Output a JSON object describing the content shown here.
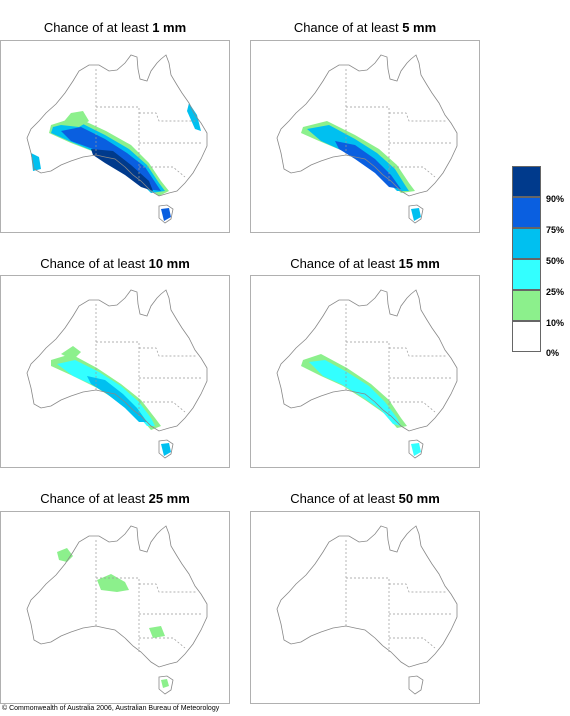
{
  "panels": [
    {
      "prefix": "Chance of at least ",
      "amount": "1 mm"
    },
    {
      "prefix": "Chance of at least ",
      "amount": "5 mm"
    },
    {
      "prefix": "Chance of at least ",
      "amount": "10 mm"
    },
    {
      "prefix": "Chance of at least ",
      "amount": "15 mm"
    },
    {
      "prefix": "Chance of at least ",
      "amount": "25 mm"
    },
    {
      "prefix": "Chance of at least ",
      "amount": "50 mm"
    }
  ],
  "legend": {
    "classes": [
      {
        "label": "90%",
        "color": "#003a8c"
      },
      {
        "label": "75%",
        "color": "#0a5fe0"
      },
      {
        "label": "50%",
        "color": "#00c0f0"
      },
      {
        "label": "25%",
        "color": "#33ffff"
      },
      {
        "label": "10%",
        "color": "#8cf08c"
      },
      {
        "label": "0%",
        "color": "#ffffff"
      }
    ]
  },
  "colors": {
    "land_outline": "#888888",
    "state_border": "#999999",
    "c10": "#8cf08c",
    "c25": "#33ffff",
    "c50": "#00c0f0",
    "c75": "#0a5fe0",
    "c90": "#003a8c"
  },
  "copyright": "© Commonwealth of Australia 2006, Australian Bureau of Meteorology"
}
